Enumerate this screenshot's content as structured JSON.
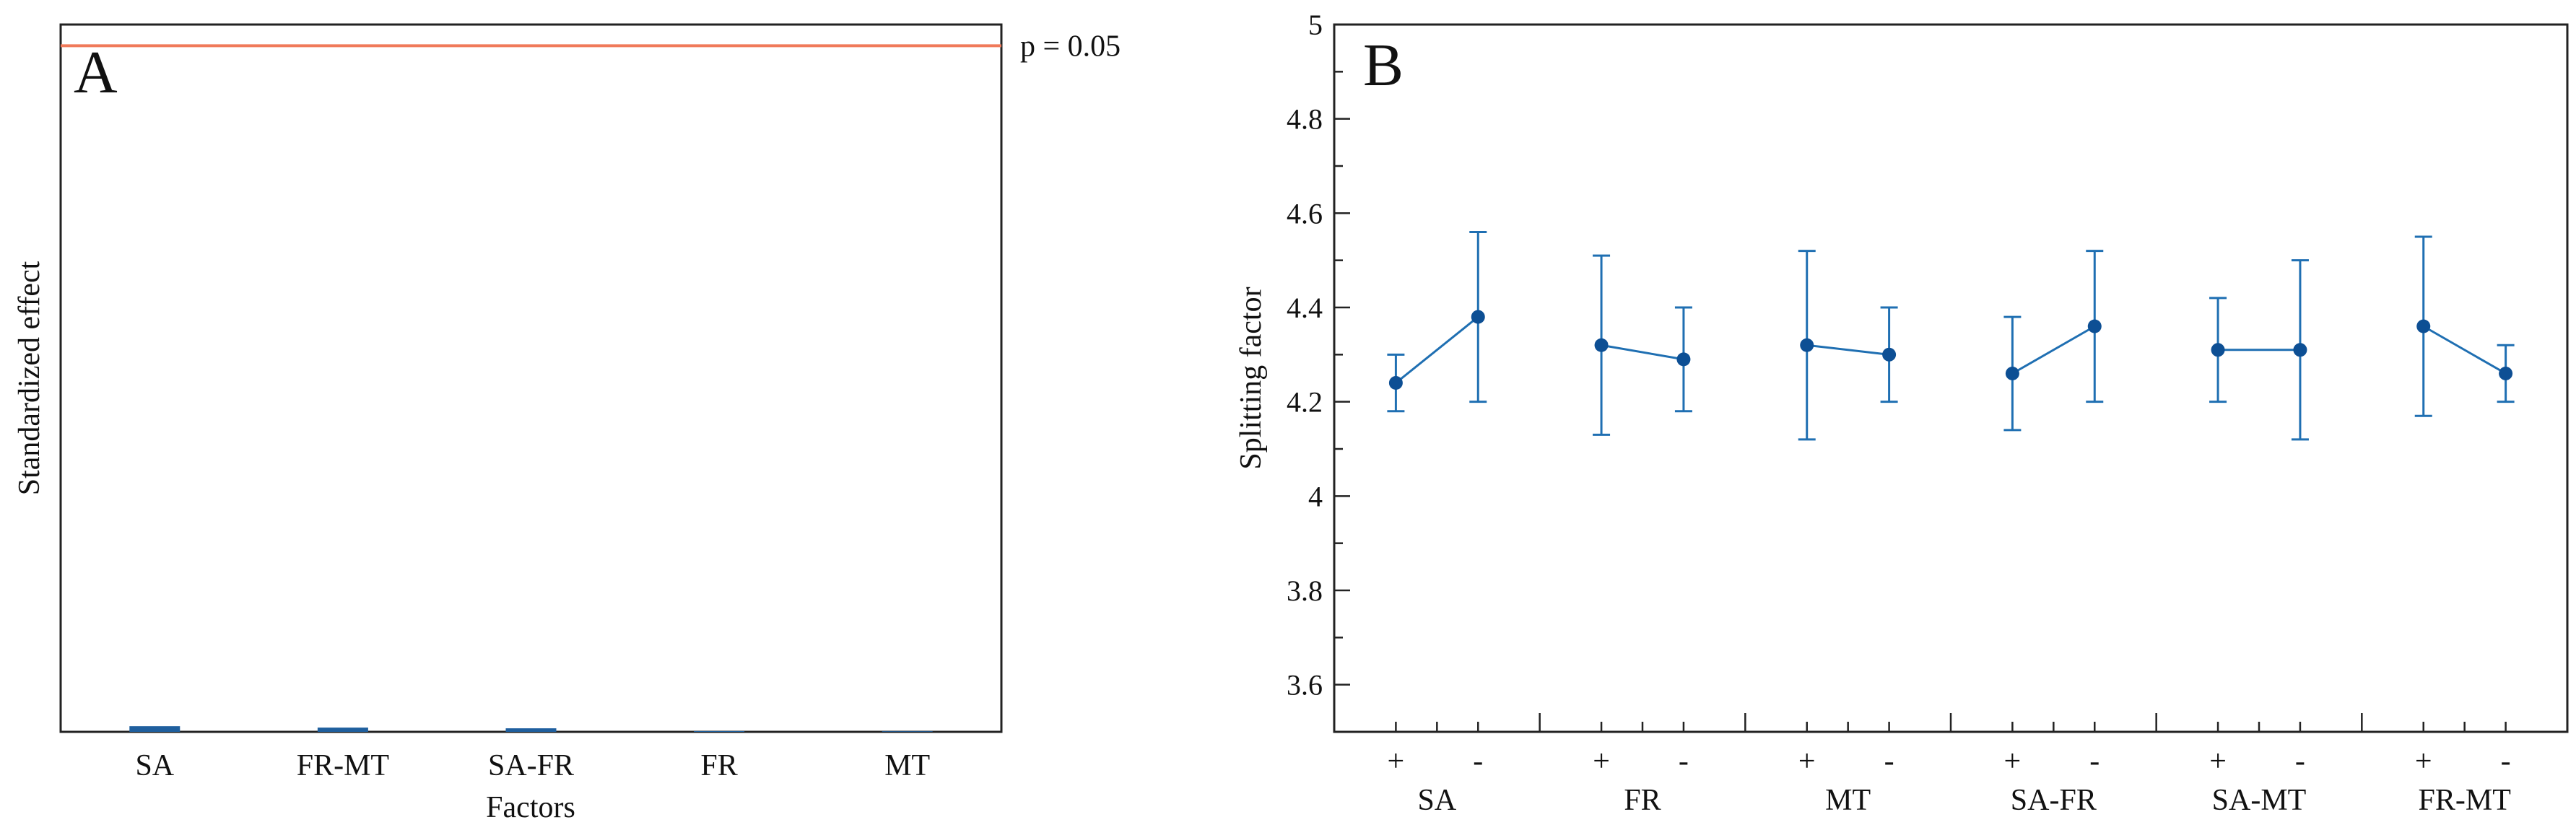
{
  "colors": {
    "line": "#1f6fb2",
    "marker": "#0d4f94",
    "bar": "#1f5f9e",
    "threshold": "#f07a5a",
    "axis": "#222222",
    "text": "#111111"
  },
  "chart_data": [
    {
      "type": "bar",
      "panel_label": "A",
      "title": "",
      "xlabel": "Factors",
      "ylabel": "Standardized effect",
      "categories": [
        "SA",
        "FR-MT",
        "SA-FR",
        "FR",
        "MT"
      ],
      "values": [
        0.008,
        0.006,
        0.005,
        0.001,
        0.0005
      ],
      "ylim": [
        0,
        1.0
      ],
      "threshold": {
        "label": "p = 0.05",
        "value": 0.97
      }
    },
    {
      "type": "line",
      "panel_label": "B",
      "title": "",
      "xlabel": "",
      "ylabel": "Splitting factor",
      "ylim": [
        3.5,
        5.0
      ],
      "yticks": [
        "3.6",
        "3.8",
        "4",
        "4.2",
        "4.4",
        "4.6",
        "4.8",
        "5"
      ],
      "level_labels": [
        "+",
        "-"
      ],
      "groups": [
        {
          "name": "SA",
          "means": [
            4.24,
            4.38
          ],
          "lower": [
            4.18,
            4.2
          ],
          "upper": [
            4.3,
            4.56
          ]
        },
        {
          "name": "FR",
          "means": [
            4.32,
            4.29
          ],
          "lower": [
            4.13,
            4.18
          ],
          "upper": [
            4.51,
            4.4
          ]
        },
        {
          "name": "MT",
          "means": [
            4.32,
            4.3
          ],
          "lower": [
            4.12,
            4.2
          ],
          "upper": [
            4.52,
            4.4
          ]
        },
        {
          "name": "SA-FR",
          "means": [
            4.26,
            4.36
          ],
          "lower": [
            4.14,
            4.2
          ],
          "upper": [
            4.38,
            4.52
          ]
        },
        {
          "name": "SA-MT",
          "means": [
            4.31,
            4.31
          ],
          "lower": [
            4.2,
            4.12
          ],
          "upper": [
            4.42,
            4.5
          ]
        },
        {
          "name": "FR-MT",
          "means": [
            4.36,
            4.26
          ],
          "lower": [
            4.17,
            4.2
          ],
          "upper": [
            4.55,
            4.32
          ]
        }
      ]
    }
  ]
}
